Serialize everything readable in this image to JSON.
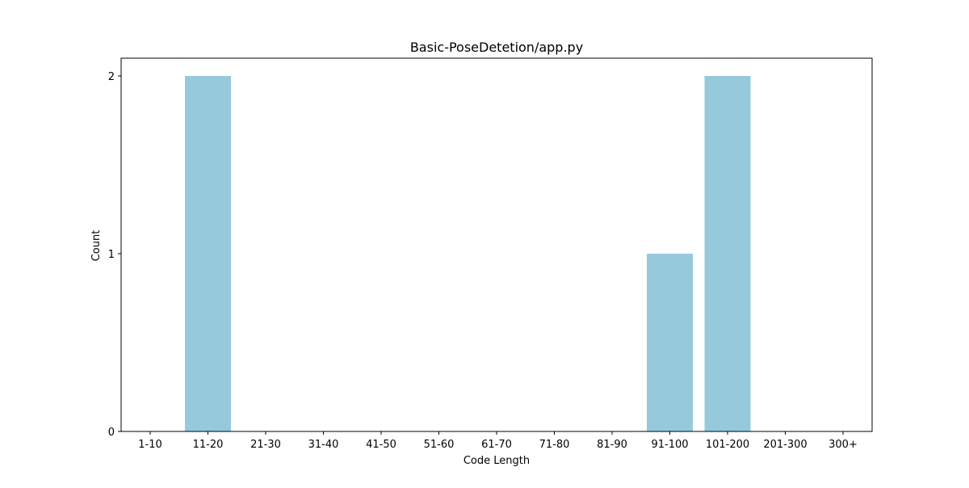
{
  "chart_data": {
    "type": "bar",
    "title": "Basic-PoseDetetion/app.py",
    "xlabel": "Code Length",
    "ylabel": "Count",
    "categories": [
      "1-10",
      "11-20",
      "21-30",
      "31-40",
      "41-50",
      "51-60",
      "61-70",
      "71-80",
      "81-90",
      "91-100",
      "101-200",
      "201-300",
      "300+"
    ],
    "values": [
      0,
      2,
      0,
      0,
      0,
      0,
      0,
      0,
      0,
      1,
      2,
      0,
      0
    ],
    "yticks": [
      0,
      1,
      2
    ],
    "ylim": [
      0,
      2.1
    ],
    "grid": false,
    "bar_color": "#96c9dc"
  }
}
